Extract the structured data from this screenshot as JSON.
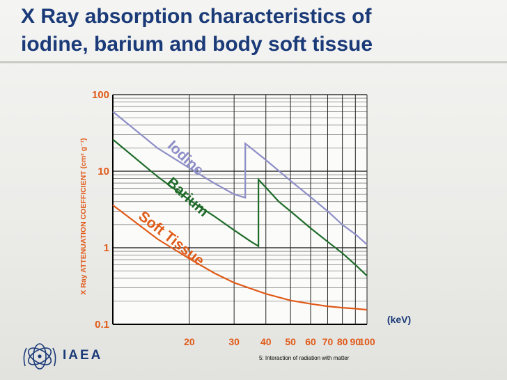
{
  "slide": {
    "title_line1": "X Ray absorption characteristics of",
    "title_line2": "iodine, barium and body soft tissue"
  },
  "footer": {
    "org": "IAEA",
    "caption": "5: Interaction of radiation with matter"
  },
  "colors": {
    "title": "#1a3a78",
    "tick": "#e05a18",
    "iodine": "#8e8ec8",
    "barium": "#1f6b2a",
    "soft_tissue": "#e05a18"
  },
  "chart_data": {
    "type": "line",
    "title": "",
    "xlabel": "(keV)",
    "ylabel": "X Ray ATTENUATION COEFFICIENT (cm² g⁻¹)",
    "x_scale": "log",
    "y_scale": "log",
    "xlim": [
      10,
      100
    ],
    "ylim": [
      0.1,
      100
    ],
    "x_ticks": [
      20,
      30,
      40,
      50,
      60,
      70,
      80,
      90,
      100
    ],
    "y_ticks": [
      {
        "value": 100,
        "label": "100"
      },
      {
        "value": 10,
        "label": "10"
      },
      {
        "value": 1,
        "label": "1"
      },
      {
        "value": 0.1,
        "label": "0.1"
      }
    ],
    "grid": true,
    "series": [
      {
        "name": "Iodine",
        "key": "iodine",
        "label": "Iodine",
        "points": [
          [
            10,
            60
          ],
          [
            15,
            20
          ],
          [
            20,
            11
          ],
          [
            25,
            7
          ],
          [
            30,
            5
          ],
          [
            33.2,
            4.5
          ],
          [
            33.2,
            23
          ],
          [
            40,
            14
          ],
          [
            50,
            7.5
          ],
          [
            60,
            4.6
          ],
          [
            70,
            3
          ],
          [
            80,
            2
          ],
          [
            90,
            1.5
          ],
          [
            100,
            1.1
          ]
        ]
      },
      {
        "name": "Barium",
        "key": "barium",
        "label": "Barium",
        "points": [
          [
            10,
            26
          ],
          [
            15,
            8.5
          ],
          [
            20,
            4.2
          ],
          [
            25,
            2.6
          ],
          [
            30,
            1.7
          ],
          [
            35,
            1.2
          ],
          [
            37.4,
            1.05
          ],
          [
            37.4,
            7.8
          ],
          [
            45,
            4
          ],
          [
            50,
            3
          ],
          [
            60,
            1.8
          ],
          [
            70,
            1.2
          ],
          [
            80,
            0.85
          ],
          [
            90,
            0.6
          ],
          [
            100,
            0.43
          ]
        ]
      },
      {
        "name": "Soft Tissue",
        "key": "soft_tissue",
        "label": "Soft Tissue",
        "points": [
          [
            10,
            3.6
          ],
          [
            15,
            1.3
          ],
          [
            20,
            0.72
          ],
          [
            25,
            0.47
          ],
          [
            30,
            0.35
          ],
          [
            40,
            0.25
          ],
          [
            50,
            0.205
          ],
          [
            60,
            0.185
          ],
          [
            70,
            0.172
          ],
          [
            80,
            0.165
          ],
          [
            90,
            0.16
          ],
          [
            100,
            0.155
          ]
        ]
      }
    ]
  }
}
